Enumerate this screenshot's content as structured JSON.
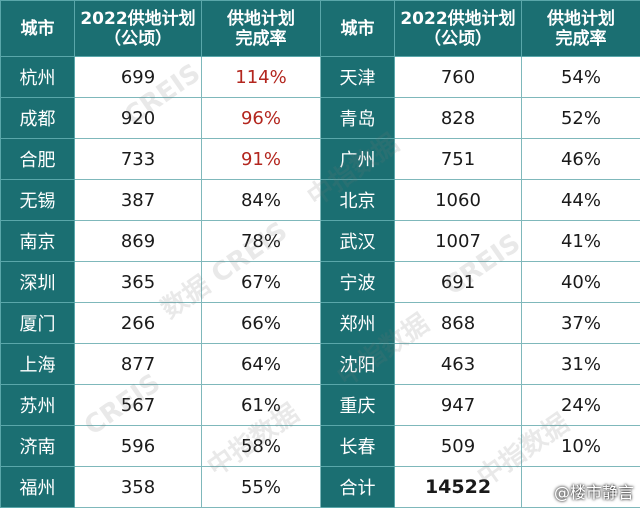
{
  "headers": {
    "city_left": "城市",
    "plan_left": "2022供地计划\n（公顷）",
    "rate_left": "供地计划\n完成率",
    "city_right": "城市",
    "plan_right": "2022供地计划\n（公顷）",
    "rate_right": "供地计划\n完成率"
  },
  "rows": [
    {
      "city_l": "杭州",
      "plan_l": "699",
      "rate_l": "114%",
      "city_r": "天津",
      "plan_r": "760",
      "rate_r": "54%"
    },
    {
      "city_l": "成都",
      "plan_l": "920",
      "rate_l": "96%",
      "city_r": "青岛",
      "plan_r": "828",
      "rate_r": "52%"
    },
    {
      "city_l": "合肥",
      "plan_l": "733",
      "rate_l": "91%",
      "city_r": "广州",
      "plan_r": "751",
      "rate_r": "46%"
    },
    {
      "city_l": "无锡",
      "plan_l": "387",
      "rate_l": "84%",
      "city_r": "北京",
      "plan_r": "1060",
      "rate_r": "44%"
    },
    {
      "city_l": "南京",
      "plan_l": "869",
      "rate_l": "78%",
      "city_r": "武汉",
      "plan_r": "1007",
      "rate_r": "41%"
    },
    {
      "city_l": "深圳",
      "plan_l": "365",
      "rate_l": "67%",
      "city_r": "宁波",
      "plan_r": "691",
      "rate_r": "40%"
    },
    {
      "city_l": "厦门",
      "plan_l": "266",
      "rate_l": "66%",
      "city_r": "郑州",
      "plan_r": "868",
      "rate_r": "37%"
    },
    {
      "city_l": "上海",
      "plan_l": "877",
      "rate_l": "64%",
      "city_r": "沈阳",
      "plan_r": "463",
      "rate_r": "31%"
    },
    {
      "city_l": "苏州",
      "plan_l": "567",
      "rate_l": "61%",
      "city_r": "重庆",
      "plan_r": "947",
      "rate_r": "24%"
    },
    {
      "city_l": "济南",
      "plan_l": "596",
      "rate_l": "58%",
      "city_r": "长春",
      "plan_r": "509",
      "rate_r": "10%"
    },
    {
      "city_l": "福州",
      "plan_l": "358",
      "rate_l": "55%",
      "city_r": "合计",
      "plan_r": "14522",
      "rate_r": ""
    }
  ],
  "highlight_color": "#b3261e",
  "header_color": "#1b6f72",
  "watermark_text": "中指数据 CREIS",
  "source_label": "@楼市静言"
}
